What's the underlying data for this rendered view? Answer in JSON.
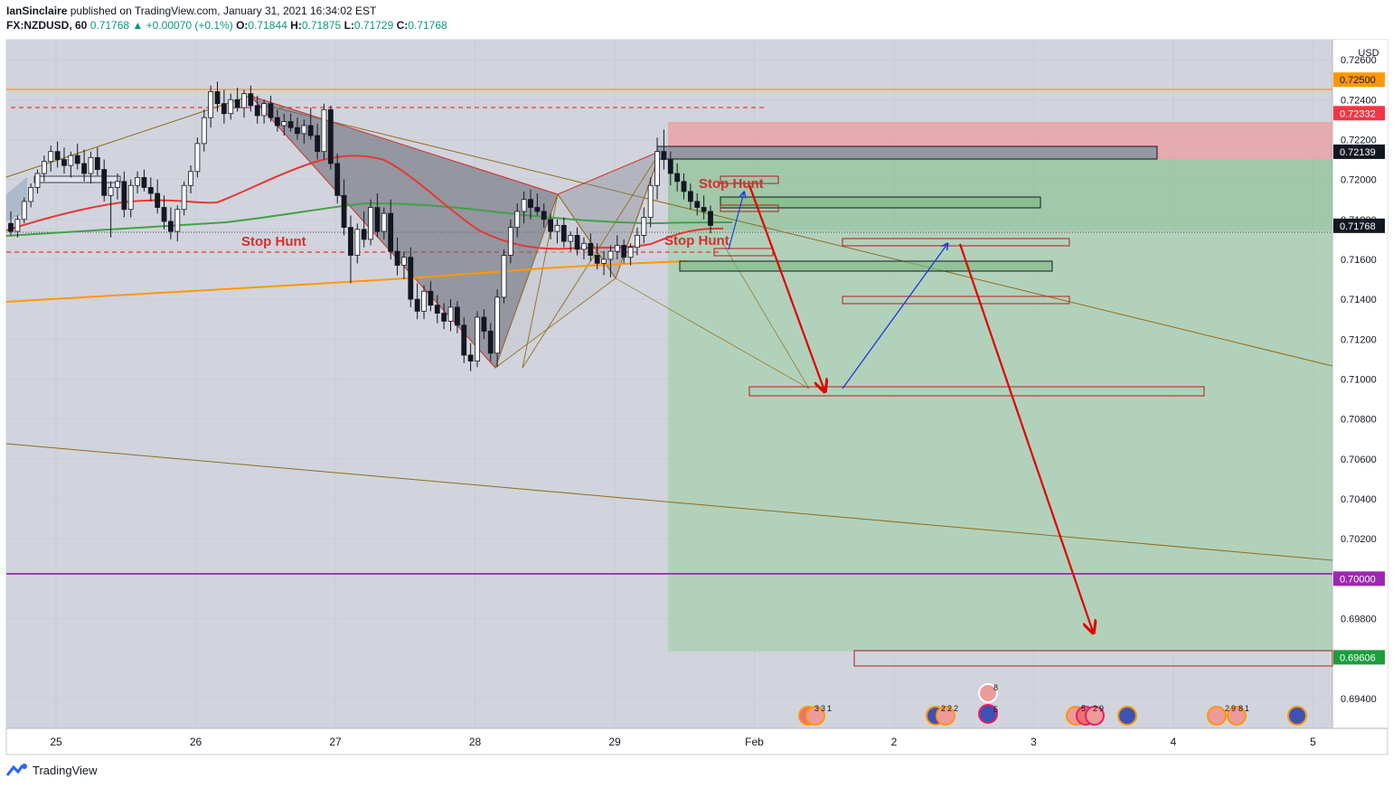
{
  "header": {
    "author": "IanSinclaire",
    "published_text": "published on TradingView.com, January 31, 2021 16:34:02 EST",
    "symbol": "FX:NZDUSD, 60",
    "last": "0.71768",
    "arrow": "▲",
    "change": "+0.00070 (+0.1%)",
    "o_label": "O:",
    "o_value": "0.71844",
    "h_label": "H:",
    "h_value": "0.71875",
    "l_label": "L:",
    "l_value": "0.71729",
    "c_label": "C:",
    "c_value": "0.71768"
  },
  "footer": {
    "brand": "TradingView",
    "logo_icon": "tradingview-logo-icon"
  },
  "colors": {
    "up": "#089981",
    "orange_line": "#ff9800",
    "red_line": "#e53935",
    "green_ma": "#43a047",
    "purple_line": "#9c27b0",
    "pattern_fill": "#9598a1",
    "target_zone": "#66bb6a",
    "stop_zone": "#ef9a9a"
  },
  "chart_data": {
    "type": "candlestick",
    "currency": "USD",
    "ylim": [
      0.6925,
      0.727
    ],
    "y_ticks": [
      "0.72600",
      "0.72400",
      "0.72200",
      "0.72000",
      "0.71800",
      "0.71600",
      "0.71400",
      "0.71200",
      "0.71000",
      "0.70800",
      "0.70600",
      "0.70400",
      "0.70200",
      "0.69800",
      "0.69400"
    ],
    "x_labels": [
      "25",
      "26",
      "27",
      "28",
      "29",
      "Feb",
      "2",
      "3",
      "4",
      "5"
    ],
    "price_badges": [
      {
        "value": "0.72500",
        "color": "#ff9800"
      },
      {
        "value": "0.72332",
        "color": "#f23645"
      },
      {
        "value": "0.72139",
        "color": "#131722"
      },
      {
        "value": "0.71768",
        "color": "#131722"
      },
      {
        "value": "0.70000",
        "color": "#9c27b0"
      },
      {
        "value": "0.69606",
        "color": "#1b9e3e"
      }
    ],
    "annotations": [
      "Stop Hunt",
      "Stop Hunt",
      "Stop Hunt"
    ],
    "event_labels": [
      "3",
      "3",
      "1",
      "2",
      "2",
      "2",
      "8",
      "5",
      "5",
      "2",
      "9",
      "2",
      "9",
      "8",
      "1"
    ],
    "candles": [
      [
        0.7178,
        0.7184,
        0.7172,
        0.7174
      ],
      [
        0.7174,
        0.7182,
        0.7171,
        0.718
      ],
      [
        0.718,
        0.7191,
        0.7178,
        0.7189
      ],
      [
        0.7189,
        0.7198,
        0.7186,
        0.7196
      ],
      [
        0.7196,
        0.7205,
        0.7193,
        0.7203
      ],
      [
        0.7203,
        0.7212,
        0.7199,
        0.7209
      ],
      [
        0.7209,
        0.7217,
        0.7204,
        0.7214
      ],
      [
        0.7214,
        0.7219,
        0.7206,
        0.721
      ],
      [
        0.721,
        0.7216,
        0.7203,
        0.7207
      ],
      [
        0.7207,
        0.7214,
        0.7201,
        0.7212
      ],
      [
        0.7212,
        0.7218,
        0.7205,
        0.7208
      ],
      [
        0.7208,
        0.7215,
        0.7199,
        0.7203
      ],
      [
        0.7203,
        0.7214,
        0.7198,
        0.7211
      ],
      [
        0.7211,
        0.7216,
        0.7202,
        0.7205
      ],
      [
        0.7205,
        0.721,
        0.7189,
        0.7192
      ],
      [
        0.7192,
        0.7199,
        0.7171,
        0.7196
      ],
      [
        0.7196,
        0.7203,
        0.719,
        0.7199
      ],
      [
        0.7199,
        0.7204,
        0.7181,
        0.7185
      ],
      [
        0.7185,
        0.72,
        0.7181,
        0.7197
      ],
      [
        0.7197,
        0.7204,
        0.7193,
        0.7201
      ],
      [
        0.7201,
        0.7205,
        0.7194,
        0.7196
      ],
      [
        0.7196,
        0.7201,
        0.7189,
        0.7193
      ],
      [
        0.7193,
        0.72,
        0.7183,
        0.7186
      ],
      [
        0.7186,
        0.7192,
        0.7175,
        0.7179
      ],
      [
        0.7179,
        0.7186,
        0.717,
        0.7174
      ],
      [
        0.7174,
        0.7187,
        0.7169,
        0.7185
      ],
      [
        0.7185,
        0.7199,
        0.7182,
        0.7197
      ],
      [
        0.7197,
        0.7207,
        0.7193,
        0.7204
      ],
      [
        0.7204,
        0.7221,
        0.7201,
        0.7218
      ],
      [
        0.7218,
        0.7235,
        0.7214,
        0.7231
      ],
      [
        0.7231,
        0.7247,
        0.7226,
        0.7244
      ],
      [
        0.7244,
        0.7249,
        0.7234,
        0.7238
      ],
      [
        0.7238,
        0.7245,
        0.7228,
        0.7233
      ],
      [
        0.7233,
        0.7243,
        0.723,
        0.724
      ],
      [
        0.724,
        0.7246,
        0.7234,
        0.7236
      ],
      [
        0.7236,
        0.7245,
        0.7231,
        0.7243
      ],
      [
        0.7243,
        0.7247,
        0.7234,
        0.7237
      ],
      [
        0.7237,
        0.7242,
        0.7228,
        0.7232
      ],
      [
        0.7232,
        0.724,
        0.7228,
        0.7238
      ],
      [
        0.7238,
        0.7242,
        0.7229,
        0.7231
      ],
      [
        0.7231,
        0.7235,
        0.7224,
        0.7227
      ],
      [
        0.7227,
        0.7233,
        0.7222,
        0.7229
      ],
      [
        0.7229,
        0.7233,
        0.7224,
        0.7226
      ],
      [
        0.7226,
        0.7231,
        0.722,
        0.7223
      ],
      [
        0.7223,
        0.723,
        0.7218,
        0.7227
      ],
      [
        0.7227,
        0.7236,
        0.722,
        0.7222
      ],
      [
        0.7222,
        0.7228,
        0.721,
        0.7214
      ],
      [
        0.7214,
        0.7238,
        0.721,
        0.7235
      ],
      [
        0.7235,
        0.7237,
        0.7205,
        0.7208
      ],
      [
        0.7208,
        0.7213,
        0.7188,
        0.7192
      ],
      [
        0.7192,
        0.72,
        0.7172,
        0.7176
      ],
      [
        0.7176,
        0.7182,
        0.7148,
        0.7162
      ],
      [
        0.7162,
        0.7178,
        0.7158,
        0.7175
      ],
      [
        0.7175,
        0.7184,
        0.7166,
        0.717
      ],
      [
        0.717,
        0.719,
        0.7167,
        0.7186
      ],
      [
        0.7186,
        0.7193,
        0.7171,
        0.7174
      ],
      [
        0.7174,
        0.7186,
        0.717,
        0.7183
      ],
      [
        0.7183,
        0.719,
        0.716,
        0.7164
      ],
      [
        0.7164,
        0.7171,
        0.7152,
        0.7157
      ],
      [
        0.7157,
        0.7164,
        0.715,
        0.7161
      ],
      [
        0.7161,
        0.7166,
        0.7136,
        0.714
      ],
      [
        0.714,
        0.7148,
        0.713,
        0.7134
      ],
      [
        0.7134,
        0.7147,
        0.713,
        0.7144
      ],
      [
        0.7144,
        0.7149,
        0.7134,
        0.7137
      ],
      [
        0.7137,
        0.7142,
        0.7128,
        0.7133
      ],
      [
        0.7133,
        0.7138,
        0.7125,
        0.7129
      ],
      [
        0.7129,
        0.714,
        0.7124,
        0.7136
      ],
      [
        0.7136,
        0.7139,
        0.7123,
        0.7127
      ],
      [
        0.7127,
        0.7131,
        0.7108,
        0.7112
      ],
      [
        0.7112,
        0.7118,
        0.7104,
        0.7109
      ],
      [
        0.7109,
        0.7134,
        0.7106,
        0.7131
      ],
      [
        0.7131,
        0.7135,
        0.712,
        0.7124
      ],
      [
        0.7124,
        0.7128,
        0.7109,
        0.7113
      ],
      [
        0.7113,
        0.7145,
        0.7106,
        0.7141
      ],
      [
        0.7141,
        0.7165,
        0.7138,
        0.7162
      ],
      [
        0.7162,
        0.718,
        0.7158,
        0.7176
      ],
      [
        0.7176,
        0.7188,
        0.7171,
        0.7184
      ],
      [
        0.7184,
        0.7194,
        0.7178,
        0.719
      ],
      [
        0.719,
        0.7195,
        0.718,
        0.7186
      ],
      [
        0.7186,
        0.7193,
        0.7182,
        0.7184
      ],
      [
        0.7184,
        0.7188,
        0.7176,
        0.718
      ],
      [
        0.718,
        0.7183,
        0.717,
        0.7174
      ],
      [
        0.7174,
        0.718,
        0.7168,
        0.7177
      ],
      [
        0.7177,
        0.7181,
        0.7166,
        0.7169
      ],
      [
        0.7169,
        0.7174,
        0.7164,
        0.7172
      ],
      [
        0.7172,
        0.7176,
        0.7162,
        0.7165
      ],
      [
        0.7165,
        0.7171,
        0.716,
        0.7168
      ],
      [
        0.7168,
        0.7173,
        0.7159,
        0.7162
      ],
      [
        0.7162,
        0.7168,
        0.7155,
        0.7158
      ],
      [
        0.7158,
        0.7164,
        0.7152,
        0.716
      ],
      [
        0.716,
        0.7167,
        0.7151,
        0.7164
      ],
      [
        0.7164,
        0.7172,
        0.716,
        0.7167
      ],
      [
        0.7167,
        0.717,
        0.7158,
        0.7161
      ],
      [
        0.7161,
        0.7168,
        0.7157,
        0.7166
      ],
      [
        0.7166,
        0.7176,
        0.7162,
        0.7172
      ],
      [
        0.7172,
        0.7186,
        0.7168,
        0.7181
      ],
      [
        0.7181,
        0.7201,
        0.7176,
        0.7197
      ],
      [
        0.7197,
        0.7221,
        0.719,
        0.7214
      ],
      [
        0.7214,
        0.7225,
        0.7205,
        0.721
      ],
      [
        0.721,
        0.7214,
        0.7197,
        0.7203
      ],
      [
        0.7203,
        0.7208,
        0.7194,
        0.7199
      ],
      [
        0.7199,
        0.7203,
        0.719,
        0.7194
      ],
      [
        0.7194,
        0.7198,
        0.7185,
        0.7189
      ],
      [
        0.7189,
        0.7193,
        0.7182,
        0.7186
      ],
      [
        0.7186,
        0.7192,
        0.718,
        0.7184
      ],
      [
        0.7184,
        0.7187,
        0.7173,
        0.7177
      ]
    ]
  }
}
